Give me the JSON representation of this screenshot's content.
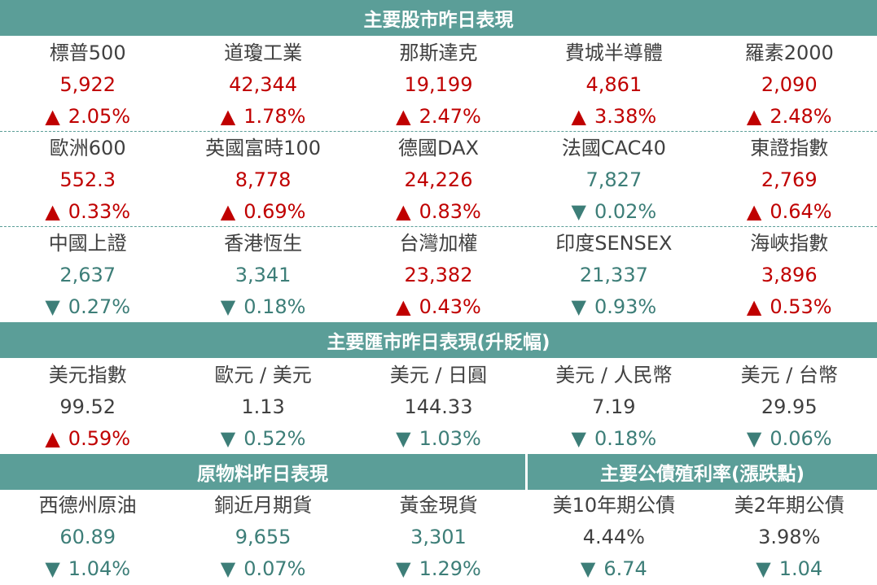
{
  "sections": {
    "stocks": "主要股市昨日表現",
    "fx": "主要匯市昨日表現(升貶幅)",
    "commodities": "原物料昨日表現",
    "bonds": "主要公債殖利率(漲跌點)"
  },
  "stocks": [
    [
      {
        "name": "標普500",
        "value": "5,922",
        "change": "2.05%",
        "dir": "up"
      },
      {
        "name": "道瓊工業",
        "value": "42,344",
        "change": "1.78%",
        "dir": "up"
      },
      {
        "name": "那斯達克",
        "value": "19,199",
        "change": "2.47%",
        "dir": "up"
      },
      {
        "name": "費城半導體",
        "value": "4,861",
        "change": "3.38%",
        "dir": "up"
      },
      {
        "name": "羅素2000",
        "value": "2,090",
        "change": "2.48%",
        "dir": "up"
      }
    ],
    [
      {
        "name": "歐洲600",
        "value": "552.3",
        "change": "0.33%",
        "dir": "up"
      },
      {
        "name": "英國富時100",
        "value": "8,778",
        "change": "0.69%",
        "dir": "up"
      },
      {
        "name": "德國DAX",
        "value": "24,226",
        "change": "0.83%",
        "dir": "up"
      },
      {
        "name": "法國CAC40",
        "value": "7,827",
        "change": "0.02%",
        "dir": "down"
      },
      {
        "name": "東證指數",
        "value": "2,769",
        "change": "0.64%",
        "dir": "up"
      }
    ],
    [
      {
        "name": "中國上證",
        "value": "2,637",
        "change": "0.27%",
        "dir": "down"
      },
      {
        "name": "香港恆生",
        "value": "3,341",
        "change": "0.18%",
        "dir": "down"
      },
      {
        "name": "台灣加權",
        "value": "23,382",
        "change": "0.43%",
        "dir": "up"
      },
      {
        "name": "印度SENSEX",
        "value": "21,337",
        "change": "0.93%",
        "dir": "down"
      },
      {
        "name": "海峽指數",
        "value": "3,896",
        "change": "0.53%",
        "dir": "up"
      }
    ]
  ],
  "fx": [
    {
      "name": "美元指數",
      "value": "99.52",
      "change": "0.59%",
      "dir": "up"
    },
    {
      "name": "歐元 / 美元",
      "value": "1.13",
      "change": "0.52%",
      "dir": "down"
    },
    {
      "name": "美元 / 日圓",
      "value": "144.33",
      "change": "1.03%",
      "dir": "down"
    },
    {
      "name": "美元 / 人民幣",
      "value": "7.19",
      "change": "0.18%",
      "dir": "down"
    },
    {
      "name": "美元 / 台幣",
      "value": "29.95",
      "change": "0.06%",
      "dir": "down"
    }
  ],
  "commodities_bonds": [
    {
      "name": "西德州原油",
      "value": "60.89",
      "change": "1.04%",
      "dir": "down"
    },
    {
      "name": "銅近月期貨",
      "value": "9,655",
      "change": "0.07%",
      "dir": "down"
    },
    {
      "name": "黃金現貨",
      "value": "3,301",
      "change": "1.29%",
      "dir": "down"
    },
    {
      "name": "美10年期公債",
      "value": "4.44%",
      "change": "6.74",
      "dir": "down"
    },
    {
      "name": "美2年期公債",
      "value": "3.98%",
      "change": "1.04",
      "dir": "down"
    }
  ],
  "arrows": {
    "up": "▲",
    "down": "▼"
  },
  "colors": {
    "band": "#5b9e98",
    "up": "#c00000",
    "down": "#3d7e78",
    "neutral": "#404040"
  }
}
